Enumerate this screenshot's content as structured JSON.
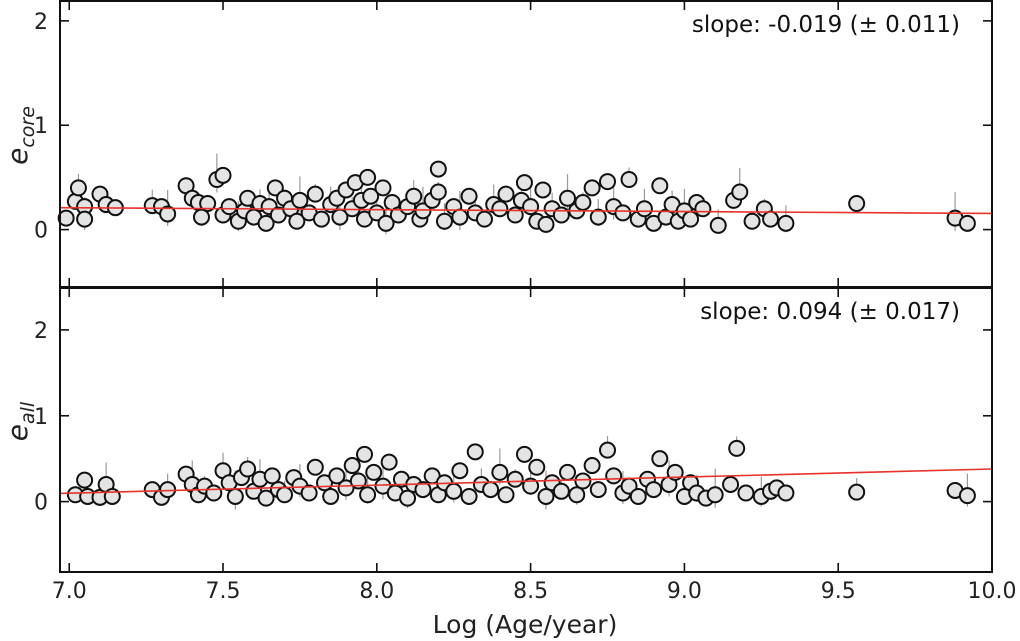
{
  "chart_data": {
    "type": "scatter",
    "xlabel": "Log (Age/year)",
    "xlim": [
      6.97,
      10.0
    ],
    "x_ticks": [
      7.0,
      7.5,
      8.0,
      8.5,
      9.0,
      9.5,
      10.0
    ],
    "x_tick_labels": [
      "7.0",
      "7.5",
      "8.0",
      "8.5",
      "9.0",
      "9.5",
      "10.0"
    ],
    "colors": {
      "marker_fill": "#e4e4e4",
      "marker_edge": "#111111",
      "fit_line": "#e8322b",
      "error_bar": "#999999",
      "frame": "#111111"
    },
    "panels": [
      {
        "id": "core",
        "ylabel_main": "e",
        "ylabel_sub": "core",
        "ylim": [
          -0.55,
          2.2
        ],
        "y_ticks": [
          0,
          1,
          2
        ],
        "y_tick_labels": [
          "0",
          "1",
          "2"
        ],
        "slope_text": "slope: -0.019 (± 0.011)",
        "fit": {
          "x": [
            6.97,
            10.0
          ],
          "y": [
            0.21,
            0.155
          ]
        },
        "points": [
          [
            6.99,
            0.11
          ],
          [
            7.02,
            0.27
          ],
          [
            7.03,
            0.4
          ],
          [
            7.05,
            0.22
          ],
          [
            7.05,
            0.1
          ],
          [
            7.1,
            0.34
          ],
          [
            7.12,
            0.24
          ],
          [
            7.15,
            0.21
          ],
          [
            7.27,
            0.23
          ],
          [
            7.3,
            0.22
          ],
          [
            7.32,
            0.15
          ],
          [
            7.38,
            0.42
          ],
          [
            7.4,
            0.3
          ],
          [
            7.42,
            0.26
          ],
          [
            7.43,
            0.12
          ],
          [
            7.45,
            0.25
          ],
          [
            7.48,
            0.48
          ],
          [
            7.5,
            0.52
          ],
          [
            7.5,
            0.14
          ],
          [
            7.52,
            0.22
          ],
          [
            7.55,
            0.08
          ],
          [
            7.57,
            0.18
          ],
          [
            7.58,
            0.3
          ],
          [
            7.6,
            0.12
          ],
          [
            7.62,
            0.25
          ],
          [
            7.64,
            0.06
          ],
          [
            7.65,
            0.22
          ],
          [
            7.67,
            0.4
          ],
          [
            7.68,
            0.14
          ],
          [
            7.7,
            0.3
          ],
          [
            7.72,
            0.2
          ],
          [
            7.74,
            0.08
          ],
          [
            7.75,
            0.28
          ],
          [
            7.78,
            0.16
          ],
          [
            7.8,
            0.34
          ],
          [
            7.82,
            0.1
          ],
          [
            7.85,
            0.24
          ],
          [
            7.87,
            0.3
          ],
          [
            7.88,
            0.12
          ],
          [
            7.9,
            0.38
          ],
          [
            7.92,
            0.2
          ],
          [
            7.93,
            0.45
          ],
          [
            7.95,
            0.28
          ],
          [
            7.96,
            0.1
          ],
          [
            7.97,
            0.5
          ],
          [
            7.98,
            0.32
          ],
          [
            8.0,
            0.16
          ],
          [
            8.02,
            0.4
          ],
          [
            8.03,
            0.06
          ],
          [
            8.05,
            0.26
          ],
          [
            8.07,
            0.14
          ],
          [
            8.1,
            0.22
          ],
          [
            8.12,
            0.32
          ],
          [
            8.14,
            0.1
          ],
          [
            8.15,
            0.18
          ],
          [
            8.18,
            0.28
          ],
          [
            8.2,
            0.36
          ],
          [
            8.2,
            0.58
          ],
          [
            8.22,
            0.08
          ],
          [
            8.25,
            0.22
          ],
          [
            8.27,
            0.12
          ],
          [
            8.3,
            0.32
          ],
          [
            8.32,
            0.16
          ],
          [
            8.35,
            0.1
          ],
          [
            8.38,
            0.24
          ],
          [
            8.4,
            0.2
          ],
          [
            8.42,
            0.34
          ],
          [
            8.45,
            0.14
          ],
          [
            8.47,
            0.28
          ],
          [
            8.48,
            0.45
          ],
          [
            8.5,
            0.22
          ],
          [
            8.52,
            0.08
          ],
          [
            8.54,
            0.38
          ],
          [
            8.55,
            0.05
          ],
          [
            8.57,
            0.2
          ],
          [
            8.6,
            0.14
          ],
          [
            8.62,
            0.3
          ],
          [
            8.65,
            0.18
          ],
          [
            8.67,
            0.26
          ],
          [
            8.7,
            0.4
          ],
          [
            8.72,
            0.12
          ],
          [
            8.75,
            0.46
          ],
          [
            8.77,
            0.22
          ],
          [
            8.8,
            0.16
          ],
          [
            8.82,
            0.48
          ],
          [
            8.85,
            0.1
          ],
          [
            8.87,
            0.2
          ],
          [
            8.9,
            0.06
          ],
          [
            8.92,
            0.42
          ],
          [
            8.94,
            0.12
          ],
          [
            8.96,
            0.24
          ],
          [
            8.98,
            0.08
          ],
          [
            9.0,
            0.18
          ],
          [
            9.02,
            0.1
          ],
          [
            9.04,
            0.26
          ],
          [
            9.06,
            0.2
          ],
          [
            9.11,
            0.04
          ],
          [
            9.16,
            0.28
          ],
          [
            9.18,
            0.36
          ],
          [
            9.22,
            0.08
          ],
          [
            9.26,
            0.2
          ],
          [
            9.28,
            0.1
          ],
          [
            9.33,
            0.06
          ],
          [
            9.56,
            0.25
          ],
          [
            9.88,
            0.11
          ],
          [
            9.92,
            0.06
          ]
        ]
      },
      {
        "id": "all",
        "ylabel_main": "e",
        "ylabel_sub": "all",
        "ylim": [
          -0.82,
          2.5
        ],
        "y_ticks": [
          0,
          1,
          2
        ],
        "y_tick_labels": [
          "0",
          "1",
          "2"
        ],
        "slope_text": "slope: 0.094 (± 0.017)",
        "fit": {
          "x": [
            6.97,
            10.0
          ],
          "y": [
            0.095,
            0.38
          ]
        },
        "points": [
          [
            7.02,
            0.08
          ],
          [
            7.05,
            0.25
          ],
          [
            7.06,
            0.06
          ],
          [
            7.1,
            0.05
          ],
          [
            7.12,
            0.2
          ],
          [
            7.14,
            0.06
          ],
          [
            7.27,
            0.14
          ],
          [
            7.3,
            0.05
          ],
          [
            7.32,
            0.14
          ],
          [
            7.38,
            0.32
          ],
          [
            7.4,
            0.2
          ],
          [
            7.42,
            0.08
          ],
          [
            7.44,
            0.18
          ],
          [
            7.47,
            0.1
          ],
          [
            7.5,
            0.36
          ],
          [
            7.52,
            0.22
          ],
          [
            7.54,
            0.06
          ],
          [
            7.56,
            0.28
          ],
          [
            7.58,
            0.38
          ],
          [
            7.6,
            0.12
          ],
          [
            7.62,
            0.26
          ],
          [
            7.64,
            0.04
          ],
          [
            7.66,
            0.3
          ],
          [
            7.68,
            0.14
          ],
          [
            7.7,
            0.08
          ],
          [
            7.73,
            0.28
          ],
          [
            7.75,
            0.18
          ],
          [
            7.78,
            0.1
          ],
          [
            7.8,
            0.4
          ],
          [
            7.83,
            0.22
          ],
          [
            7.85,
            0.06
          ],
          [
            7.87,
            0.3
          ],
          [
            7.9,
            0.16
          ],
          [
            7.92,
            0.42
          ],
          [
            7.94,
            0.24
          ],
          [
            7.96,
            0.55
          ],
          [
            7.97,
            0.08
          ],
          [
            7.99,
            0.34
          ],
          [
            8.02,
            0.18
          ],
          [
            8.04,
            0.46
          ],
          [
            8.06,
            0.1
          ],
          [
            8.08,
            0.26
          ],
          [
            8.1,
            0.04
          ],
          [
            8.12,
            0.2
          ],
          [
            8.15,
            0.14
          ],
          [
            8.18,
            0.3
          ],
          [
            8.2,
            0.08
          ],
          [
            8.22,
            0.22
          ],
          [
            8.25,
            0.12
          ],
          [
            8.27,
            0.36
          ],
          [
            8.3,
            0.06
          ],
          [
            8.32,
            0.58
          ],
          [
            8.34,
            0.2
          ],
          [
            8.37,
            0.14
          ],
          [
            8.4,
            0.34
          ],
          [
            8.42,
            0.08
          ],
          [
            8.45,
            0.26
          ],
          [
            8.48,
            0.55
          ],
          [
            8.5,
            0.18
          ],
          [
            8.52,
            0.4
          ],
          [
            8.55,
            0.06
          ],
          [
            8.57,
            0.22
          ],
          [
            8.6,
            0.12
          ],
          [
            8.62,
            0.34
          ],
          [
            8.65,
            0.08
          ],
          [
            8.67,
            0.24
          ],
          [
            8.7,
            0.42
          ],
          [
            8.72,
            0.14
          ],
          [
            8.75,
            0.6
          ],
          [
            8.77,
            0.3
          ],
          [
            8.8,
            0.1
          ],
          [
            8.82,
            0.18
          ],
          [
            8.85,
            0.06
          ],
          [
            8.88,
            0.26
          ],
          [
            8.9,
            0.14
          ],
          [
            8.92,
            0.5
          ],
          [
            8.95,
            0.2
          ],
          [
            8.97,
            0.34
          ],
          [
            9.0,
            0.06
          ],
          [
            9.02,
            0.22
          ],
          [
            9.04,
            0.1
          ],
          [
            9.07,
            0.04
          ],
          [
            9.1,
            0.08
          ],
          [
            9.15,
            0.2
          ],
          [
            9.17,
            0.62
          ],
          [
            9.2,
            0.1
          ],
          [
            9.25,
            0.06
          ],
          [
            9.28,
            0.12
          ],
          [
            9.3,
            0.16
          ],
          [
            9.33,
            0.1
          ],
          [
            9.56,
            0.11
          ],
          [
            9.88,
            0.13
          ],
          [
            9.92,
            0.07
          ]
        ]
      }
    ]
  }
}
